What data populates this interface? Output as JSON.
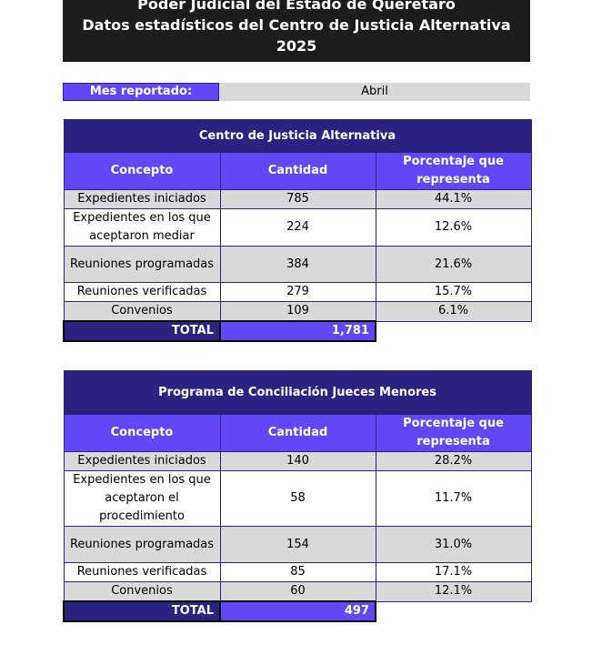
{
  "header": {
    "line1": "Poder Judicial del Estado de Querétaro",
    "line2": "Datos estadísticos del Centro de Justicia Alternativa",
    "line3": "2025"
  },
  "mes": {
    "label": "Mes reportado:",
    "value": "Abril"
  },
  "table1": {
    "title": "Centro de Justicia Alternativa",
    "headers": [
      "Concepto",
      "Cantidad",
      "Porcentaje que representa"
    ],
    "rows": [
      {
        "concepto": "Expedientes iniciados",
        "cantidad": "785",
        "porcentaje": "44.1%"
      },
      {
        "concepto": "Expedientes en los que aceptaron mediar",
        "cantidad": "224",
        "porcentaje": "12.6%"
      },
      {
        "concepto": "Reuniones programadas",
        "cantidad": "384",
        "porcentaje": "21.6%"
      },
      {
        "concepto": "Reuniones verificadas",
        "cantidad": "279",
        "porcentaje": "15.7%"
      },
      {
        "concepto": "Convenios",
        "cantidad": "109",
        "porcentaje": "6.1%"
      }
    ],
    "total_label": "TOTAL",
    "total_value": "1,781"
  },
  "table2": {
    "title": "Programa de Conciliación Jueces Menores",
    "headers": [
      "Concepto",
      "Cantidad",
      "Porcentaje que representa"
    ],
    "rows": [
      {
        "concepto": "Expedientes iniciados",
        "cantidad": "140",
        "porcentaje": "28.2%"
      },
      {
        "concepto": "Expedientes en los que aceptaron el procedimiento",
        "cantidad": "58",
        "porcentaje": "11.7%"
      },
      {
        "concepto": "Reuniones programadas",
        "cantidad": "154",
        "porcentaje": "31.0%"
      },
      {
        "concepto": "Reuniones verificadas",
        "cantidad": "85",
        "porcentaje": "17.1%"
      },
      {
        "concepto": "Convenios",
        "cantidad": "60",
        "porcentaje": "12.1%"
      }
    ],
    "total_label": "TOTAL",
    "total_value": "497"
  }
}
